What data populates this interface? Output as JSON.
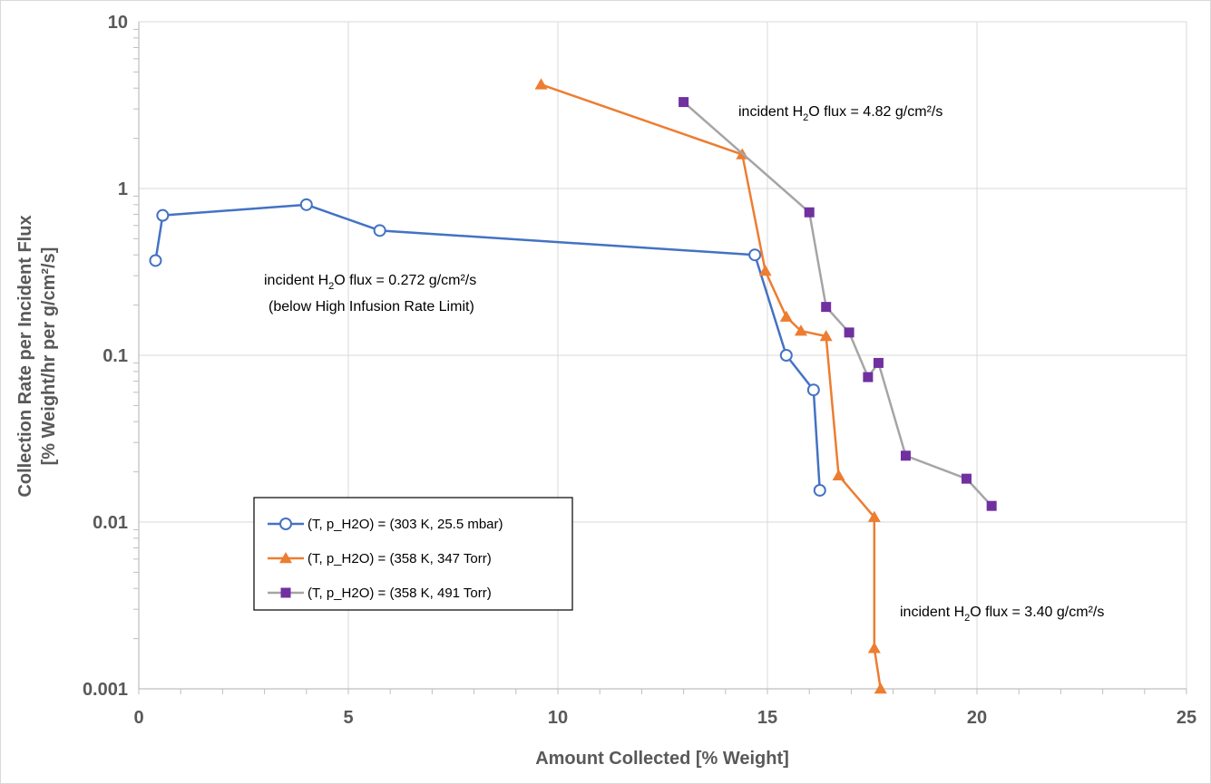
{
  "chart_data": {
    "type": "scatter",
    "xlabel": "Amount Collected [% Weight]",
    "ylabel_line1": "Collection Rate per Incident Flux",
    "ylabel_line2": "[% Weight/hr per g/cm²/s]",
    "xlim": [
      0,
      25
    ],
    "ylim": [
      0.001,
      10
    ],
    "yscale": "log",
    "x_ticks": [
      "0",
      "5",
      "10",
      "15",
      "20",
      "25"
    ],
    "y_ticks": [
      "10",
      "1",
      "0.1",
      "0.01",
      "0.001"
    ],
    "grid": "major",
    "legend_position": "lower-left",
    "series": [
      {
        "name": "(T, p_H2O) = (303 K, 25.5 mbar)",
        "color": "#4472c4",
        "marker": "open-circle",
        "x": [
          0.4,
          0.57,
          4.0,
          5.75,
          14.7,
          15.45,
          16.1,
          16.25
        ],
        "y": [
          0.37,
          0.69,
          0.8,
          0.56,
          0.4,
          0.1,
          0.062,
          0.0155
        ]
      },
      {
        "name": "(T, p_H2O) = (358 K, 347 Torr)",
        "color": "#ed7d31",
        "marker": "triangle",
        "x": [
          9.6,
          14.4,
          14.95,
          15.45,
          15.8,
          16.4,
          16.7,
          17.55,
          17.55,
          17.7
        ],
        "y": [
          4.2,
          1.6,
          0.32,
          0.17,
          0.14,
          0.13,
          0.019,
          0.0107,
          0.00175,
          0.001
        ]
      },
      {
        "name": "(T, p_H2O) = (358 K, 491 Torr)",
        "color": "#7030a0",
        "line_color": "#a5a5a5",
        "marker": "square",
        "x": [
          13.0,
          16.0,
          16.4,
          16.95,
          17.4,
          17.65,
          18.3,
          19.75,
          20.35
        ],
        "y": [
          3.3,
          0.72,
          0.195,
          0.137,
          0.074,
          0.09,
          0.025,
          0.0182,
          0.0125
        ]
      }
    ],
    "annotations": [
      {
        "pre": "incident H",
        "sub": "2",
        "post": "O flux = 0.272 g/cm²/s"
      },
      {
        "line2": "(below High Infusion Rate Limit)"
      },
      {
        "pre": "incident H",
        "sub": "2",
        "post": "O flux = 4.82 g/cm²/s"
      },
      {
        "pre": "incident H",
        "sub": "2",
        "post": "O flux = 3.40 g/cm²/s"
      }
    ]
  }
}
